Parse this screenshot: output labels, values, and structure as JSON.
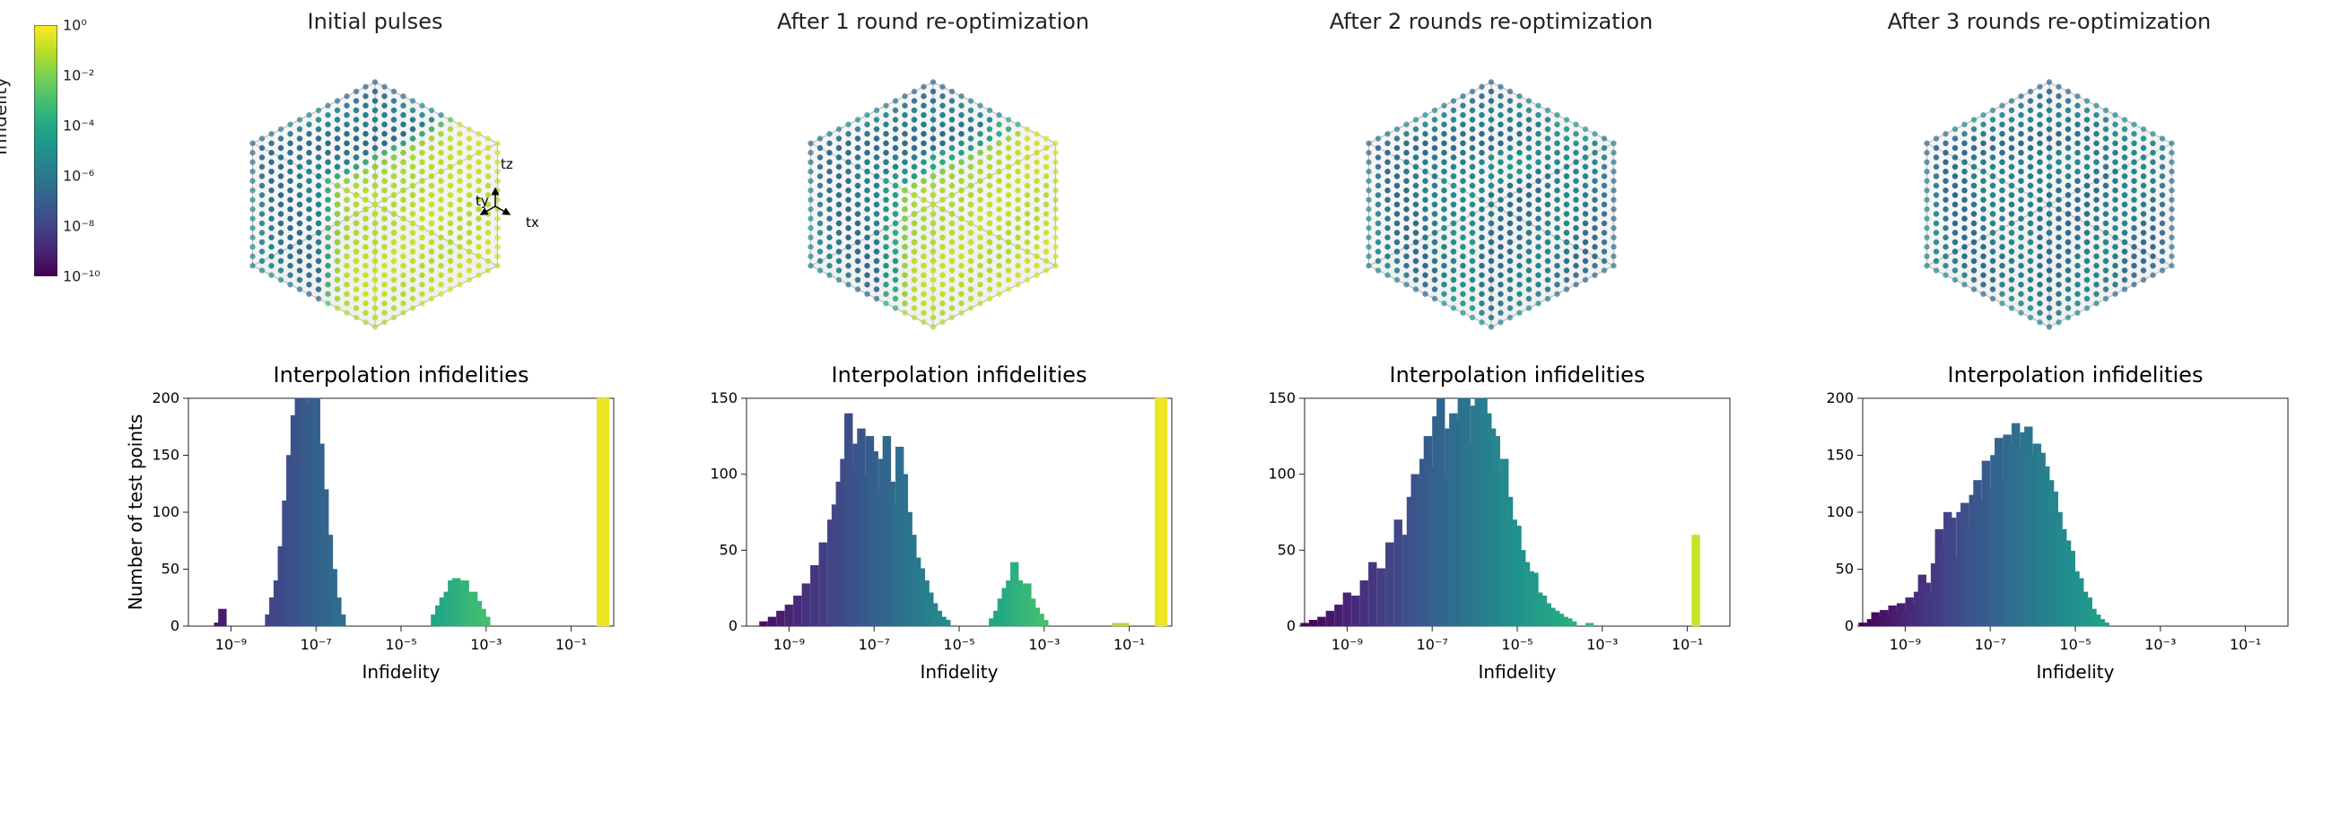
{
  "colorbar": {
    "label": "Infidelity",
    "ticks": [
      "10⁰",
      "10⁻²",
      "10⁻⁴",
      "10⁻⁶",
      "10⁻⁸",
      "10⁻¹⁰"
    ],
    "tick_exp": [
      0,
      -2,
      -4,
      -6,
      -8,
      -10
    ],
    "cmap": "viridis",
    "vmin_exp": -10,
    "vmax_exp": 0
  },
  "viridis_stops": [
    [
      0.0,
      "#440154"
    ],
    [
      0.1,
      "#482475"
    ],
    [
      0.2,
      "#414487"
    ],
    [
      0.3,
      "#355f8d"
    ],
    [
      0.4,
      "#2a788e"
    ],
    [
      0.5,
      "#21918c"
    ],
    [
      0.6,
      "#22a884"
    ],
    [
      0.7,
      "#44bf70"
    ],
    [
      0.8,
      "#7ad151"
    ],
    [
      0.9,
      "#bddf26"
    ],
    [
      1.0,
      "#fde725"
    ]
  ],
  "cube_axes": {
    "labels": [
      "tx",
      "ty",
      "tz"
    ],
    "n_per_side": 14
  },
  "cubes": [
    {
      "title": "Initial pulses",
      "band_exp": {
        "default": -6,
        "x_hi_start": 0.65,
        "hi_val": -1,
        "mid_val": -3,
        "mid_range": [
          0.55,
          0.7
        ]
      },
      "show_arrow": true
    },
    {
      "title": "After 1 round re-optimization",
      "band_exp": {
        "default": -6,
        "x_hi_start": 0.7,
        "hi_val": -1,
        "mid_val": -4,
        "mid_range": [
          0.58,
          0.78
        ]
      },
      "show_arrow": false
    },
    {
      "title": "After 2 rounds re-optimization",
      "band_exp": {
        "default": -6,
        "x_hi_start": 2.0,
        "hi_val": -4,
        "mid_val": -5,
        "mid_range": [
          0.55,
          0.85
        ]
      },
      "show_arrow": false
    },
    {
      "title": "After 3 rounds re-optimization",
      "band_exp": {
        "default": -6,
        "x_hi_start": 2.0,
        "hi_val": -5,
        "mid_val": -5.5,
        "mid_range": [
          0.55,
          0.9
        ]
      },
      "show_arrow": false
    }
  ],
  "hist_common": {
    "title": "Interpolation infidelities",
    "xlabel": "Infidelity",
    "ylabel": "Number of test points",
    "xlim_exp": [
      -10,
      0
    ],
    "xticks_exp": [
      -9,
      -7,
      -5,
      -3,
      -1
    ],
    "xtick_labels": [
      "10⁻⁹",
      "10⁻⁷",
      "10⁻⁵",
      "10⁻³",
      "10⁻¹"
    ],
    "nbins": 50,
    "bar_edge": "#ffffff",
    "frame_color": "#222222",
    "title_fontsize": 24,
    "label_fontsize": 20,
    "tick_fontsize": 16
  },
  "hists": [
    {
      "ylim": [
        0,
        200
      ],
      "yticks": [
        0,
        50,
        100,
        150,
        200
      ],
      "bars": [
        [
          -9.3,
          3
        ],
        [
          -9.2,
          15
        ],
        [
          -8.1,
          10
        ],
        [
          -8.0,
          25
        ],
        [
          -7.9,
          40
        ],
        [
          -7.8,
          70
        ],
        [
          -7.7,
          110
        ],
        [
          -7.6,
          150
        ],
        [
          -7.5,
          185
        ],
        [
          -7.4,
          200
        ],
        [
          -7.3,
          200
        ],
        [
          -7.2,
          195
        ],
        [
          -7.1,
          200
        ],
        [
          -7.0,
          200
        ],
        [
          -6.9,
          160
        ],
        [
          -6.8,
          120
        ],
        [
          -6.7,
          80
        ],
        [
          -6.6,
          50
        ],
        [
          -6.5,
          25
        ],
        [
          -6.4,
          10
        ],
        [
          -4.2,
          10
        ],
        [
          -4.1,
          18
        ],
        [
          -4.0,
          25
        ],
        [
          -3.9,
          30
        ],
        [
          -3.8,
          40
        ],
        [
          -3.7,
          42
        ],
        [
          -3.6,
          35
        ],
        [
          -3.5,
          40
        ],
        [
          -3.4,
          28
        ],
        [
          -3.3,
          30
        ],
        [
          -3.2,
          22
        ],
        [
          -3.1,
          15
        ],
        [
          -3.0,
          8
        ],
        [
          -0.3,
          200
        ],
        [
          -0.2,
          200
        ]
      ]
    },
    {
      "ylim": [
        0,
        150
      ],
      "yticks": [
        0,
        50,
        100,
        150
      ],
      "bars": [
        [
          -9.6,
          3
        ],
        [
          -9.4,
          6
        ],
        [
          -9.2,
          10
        ],
        [
          -9.0,
          14
        ],
        [
          -8.8,
          20
        ],
        [
          -8.6,
          28
        ],
        [
          -8.4,
          40
        ],
        [
          -8.2,
          55
        ],
        [
          -8.0,
          70
        ],
        [
          -7.9,
          80
        ],
        [
          -7.8,
          95
        ],
        [
          -7.7,
          110
        ],
        [
          -7.6,
          140
        ],
        [
          -7.5,
          105
        ],
        [
          -7.4,
          120
        ],
        [
          -7.3,
          130
        ],
        [
          -7.2,
          100
        ],
        [
          -7.1,
          125
        ],
        [
          -7.0,
          115
        ],
        [
          -6.9,
          90
        ],
        [
          -6.8,
          110
        ],
        [
          -6.7,
          125
        ],
        [
          -6.6,
          95
        ],
        [
          -6.5,
          80
        ],
        [
          -6.4,
          118
        ],
        [
          -6.3,
          100
        ],
        [
          -6.2,
          75
        ],
        [
          -6.1,
          60
        ],
        [
          -6.0,
          45
        ],
        [
          -5.9,
          38
        ],
        [
          -5.8,
          30
        ],
        [
          -5.7,
          22
        ],
        [
          -5.6,
          15
        ],
        [
          -5.5,
          10
        ],
        [
          -5.4,
          6
        ],
        [
          -5.3,
          4
        ],
        [
          -4.2,
          5
        ],
        [
          -4.1,
          10
        ],
        [
          -4.0,
          18
        ],
        [
          -3.9,
          25
        ],
        [
          -3.8,
          30
        ],
        [
          -3.7,
          42
        ],
        [
          -3.6,
          30
        ],
        [
          -3.5,
          25
        ],
        [
          -3.4,
          28
        ],
        [
          -3.3,
          18
        ],
        [
          -3.2,
          12
        ],
        [
          -3.1,
          8
        ],
        [
          -3.0,
          4
        ],
        [
          -1.3,
          2
        ],
        [
          -1.1,
          2
        ],
        [
          -0.3,
          200
        ],
        [
          -0.2,
          200
        ]
      ]
    },
    {
      "ylim": [
        0,
        150
      ],
      "yticks": [
        0,
        50,
        100,
        150
      ],
      "bars": [
        [
          -10.0,
          2
        ],
        [
          -9.8,
          4
        ],
        [
          -9.6,
          6
        ],
        [
          -9.4,
          10
        ],
        [
          -9.2,
          14
        ],
        [
          -9.0,
          22
        ],
        [
          -8.8,
          20
        ],
        [
          -8.6,
          30
        ],
        [
          -8.4,
          42
        ],
        [
          -8.2,
          38
        ],
        [
          -8.0,
          55
        ],
        [
          -7.8,
          70
        ],
        [
          -7.6,
          60
        ],
        [
          -7.5,
          85
        ],
        [
          -7.4,
          100
        ],
        [
          -7.3,
          95
        ],
        [
          -7.2,
          110
        ],
        [
          -7.1,
          125
        ],
        [
          -7.0,
          105
        ],
        [
          -6.9,
          138
        ],
        [
          -6.8,
          150
        ],
        [
          -6.7,
          100
        ],
        [
          -6.6,
          130
        ],
        [
          -6.5,
          140
        ],
        [
          -6.4,
          135
        ],
        [
          -6.3,
          150
        ],
        [
          -6.2,
          160
        ],
        [
          -6.1,
          120
        ],
        [
          -6.0,
          145
        ],
        [
          -5.9,
          150
        ],
        [
          -5.8,
          160
        ],
        [
          -5.7,
          140
        ],
        [
          -5.6,
          130
        ],
        [
          -5.5,
          125
        ],
        [
          -5.4,
          100
        ],
        [
          -5.3,
          110
        ],
        [
          -5.2,
          85
        ],
        [
          -5.1,
          70
        ],
        [
          -5.0,
          66
        ],
        [
          -4.9,
          50
        ],
        [
          -4.8,
          42
        ],
        [
          -4.7,
          36
        ],
        [
          -4.6,
          35
        ],
        [
          -4.5,
          22
        ],
        [
          -4.4,
          20
        ],
        [
          -4.3,
          15
        ],
        [
          -4.2,
          12
        ],
        [
          -4.1,
          10
        ],
        [
          -4.0,
          8
        ],
        [
          -3.9,
          6
        ],
        [
          -3.8,
          5
        ],
        [
          -3.7,
          3
        ],
        [
          -3.3,
          2
        ],
        [
          -0.8,
          60
        ]
      ]
    },
    {
      "ylim": [
        0,
        200
      ],
      "yticks": [
        0,
        50,
        100,
        150,
        200
      ],
      "bars": [
        [
          -10.0,
          3
        ],
        [
          -9.8,
          6
        ],
        [
          -9.7,
          12
        ],
        [
          -9.6,
          8
        ],
        [
          -9.5,
          14
        ],
        [
          -9.4,
          10
        ],
        [
          -9.3,
          18
        ],
        [
          -9.2,
          12
        ],
        [
          -9.1,
          20
        ],
        [
          -9.0,
          14
        ],
        [
          -8.9,
          25
        ],
        [
          -8.8,
          18
        ],
        [
          -8.7,
          30
        ],
        [
          -8.6,
          45
        ],
        [
          -8.5,
          38
        ],
        [
          -8.4,
          28
        ],
        [
          -8.3,
          55
        ],
        [
          -8.2,
          85
        ],
        [
          -8.1,
          70
        ],
        [
          -8.0,
          100
        ],
        [
          -7.9,
          95
        ],
        [
          -7.8,
          60
        ],
        [
          -7.7,
          100
        ],
        [
          -7.6,
          108
        ],
        [
          -7.5,
          88
        ],
        [
          -7.4,
          115
        ],
        [
          -7.3,
          128
        ],
        [
          -7.2,
          110
        ],
        [
          -7.1,
          145
        ],
        [
          -7.0,
          120
        ],
        [
          -6.9,
          150
        ],
        [
          -6.8,
          165
        ],
        [
          -6.7,
          130
        ],
        [
          -6.6,
          168
        ],
        [
          -6.5,
          160
        ],
        [
          -6.4,
          178
        ],
        [
          -6.3,
          155
        ],
        [
          -6.2,
          170
        ],
        [
          -6.1,
          175
        ],
        [
          -6.0,
          150
        ],
        [
          -5.9,
          160
        ],
        [
          -5.8,
          152
        ],
        [
          -5.7,
          140
        ],
        [
          -5.6,
          128
        ],
        [
          -5.5,
          118
        ],
        [
          -5.4,
          100
        ],
        [
          -5.3,
          85
        ],
        [
          -5.2,
          75
        ],
        [
          -5.1,
          66
        ],
        [
          -5.0,
          48
        ],
        [
          -4.9,
          42
        ],
        [
          -4.8,
          30
        ],
        [
          -4.7,
          25
        ],
        [
          -4.6,
          15
        ],
        [
          -4.5,
          10
        ],
        [
          -4.4,
          6
        ],
        [
          -4.3,
          3
        ]
      ]
    }
  ]
}
